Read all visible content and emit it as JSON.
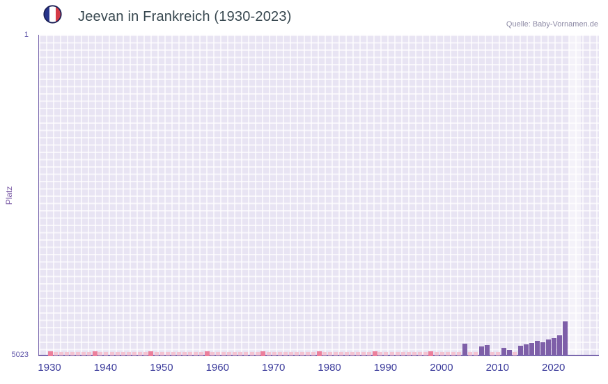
{
  "header": {
    "title": "Jeevan in Frankreich (1930-2023)",
    "source": "Quelle: Baby-Vornamen.de",
    "flag_icon": "france-flag-icon"
  },
  "colors": {
    "bar": "#7e5fa8",
    "mark-light": "#f4c3d2",
    "mark-dark": "#ec7f9c",
    "plot-bg": "#e8e4f3",
    "grid": "rgba(255,255,255,0.68)",
    "band": "rgba(255,255,255,0.5)",
    "spine": "#7a68ae",
    "xtick": "#3b3b9b",
    "ytick": "#5f55a8",
    "ylabel": "#7e5fa8",
    "title": "#37474f",
    "source": "#8d8aa5",
    "flag-blue": "#27348b",
    "flag-white": "#ffffff",
    "flag-red": "#d43a47",
    "flag-ring": "#1c2157"
  },
  "chart_data": {
    "type": "bar",
    "title": "Jeevan in Frankreich (1930-2023)",
    "series_name": "Jeevan",
    "xlabel": "",
    "ylabel": "Platz",
    "y_axis_inverted": true,
    "ylim": [
      1,
      5023
    ],
    "y_ticks": [
      1,
      5023
    ],
    "x_ticks": [
      1930,
      1940,
      1950,
      1960,
      1970,
      1980,
      1990,
      2000,
      2010,
      2020
    ],
    "x_range": [
      1928,
      2028
    ],
    "grid": true,
    "legend": false,
    "highlight_band": {
      "from": 2022.6,
      "to": 2024.8
    },
    "bars": [
      {
        "year": 2004,
        "rank": 4850
      },
      {
        "year": 2007,
        "rank": 4895
      },
      {
        "year": 2008,
        "rank": 4870
      },
      {
        "year": 2011,
        "rank": 4915
      },
      {
        "year": 2012,
        "rank": 4945
      },
      {
        "year": 2014,
        "rank": 4880
      },
      {
        "year": 2015,
        "rank": 4860
      },
      {
        "year": 2016,
        "rank": 4840
      },
      {
        "year": 2017,
        "rank": 4805
      },
      {
        "year": 2018,
        "rank": 4825
      },
      {
        "year": 2019,
        "rank": 4785
      },
      {
        "year": 2020,
        "rank": 4760
      },
      {
        "year": 2021,
        "rank": 4720
      },
      {
        "year": 2022,
        "rank": 4500
      }
    ],
    "unranked_year_ranges": [
      [
        1930,
        2003
      ],
      [
        2005,
        2006
      ],
      [
        2009,
        2010
      ],
      [
        2013,
        2013
      ]
    ],
    "unranked_dark_years": [
      1930,
      1938,
      1948,
      1958,
      1968,
      1978,
      1988,
      1998
    ]
  }
}
